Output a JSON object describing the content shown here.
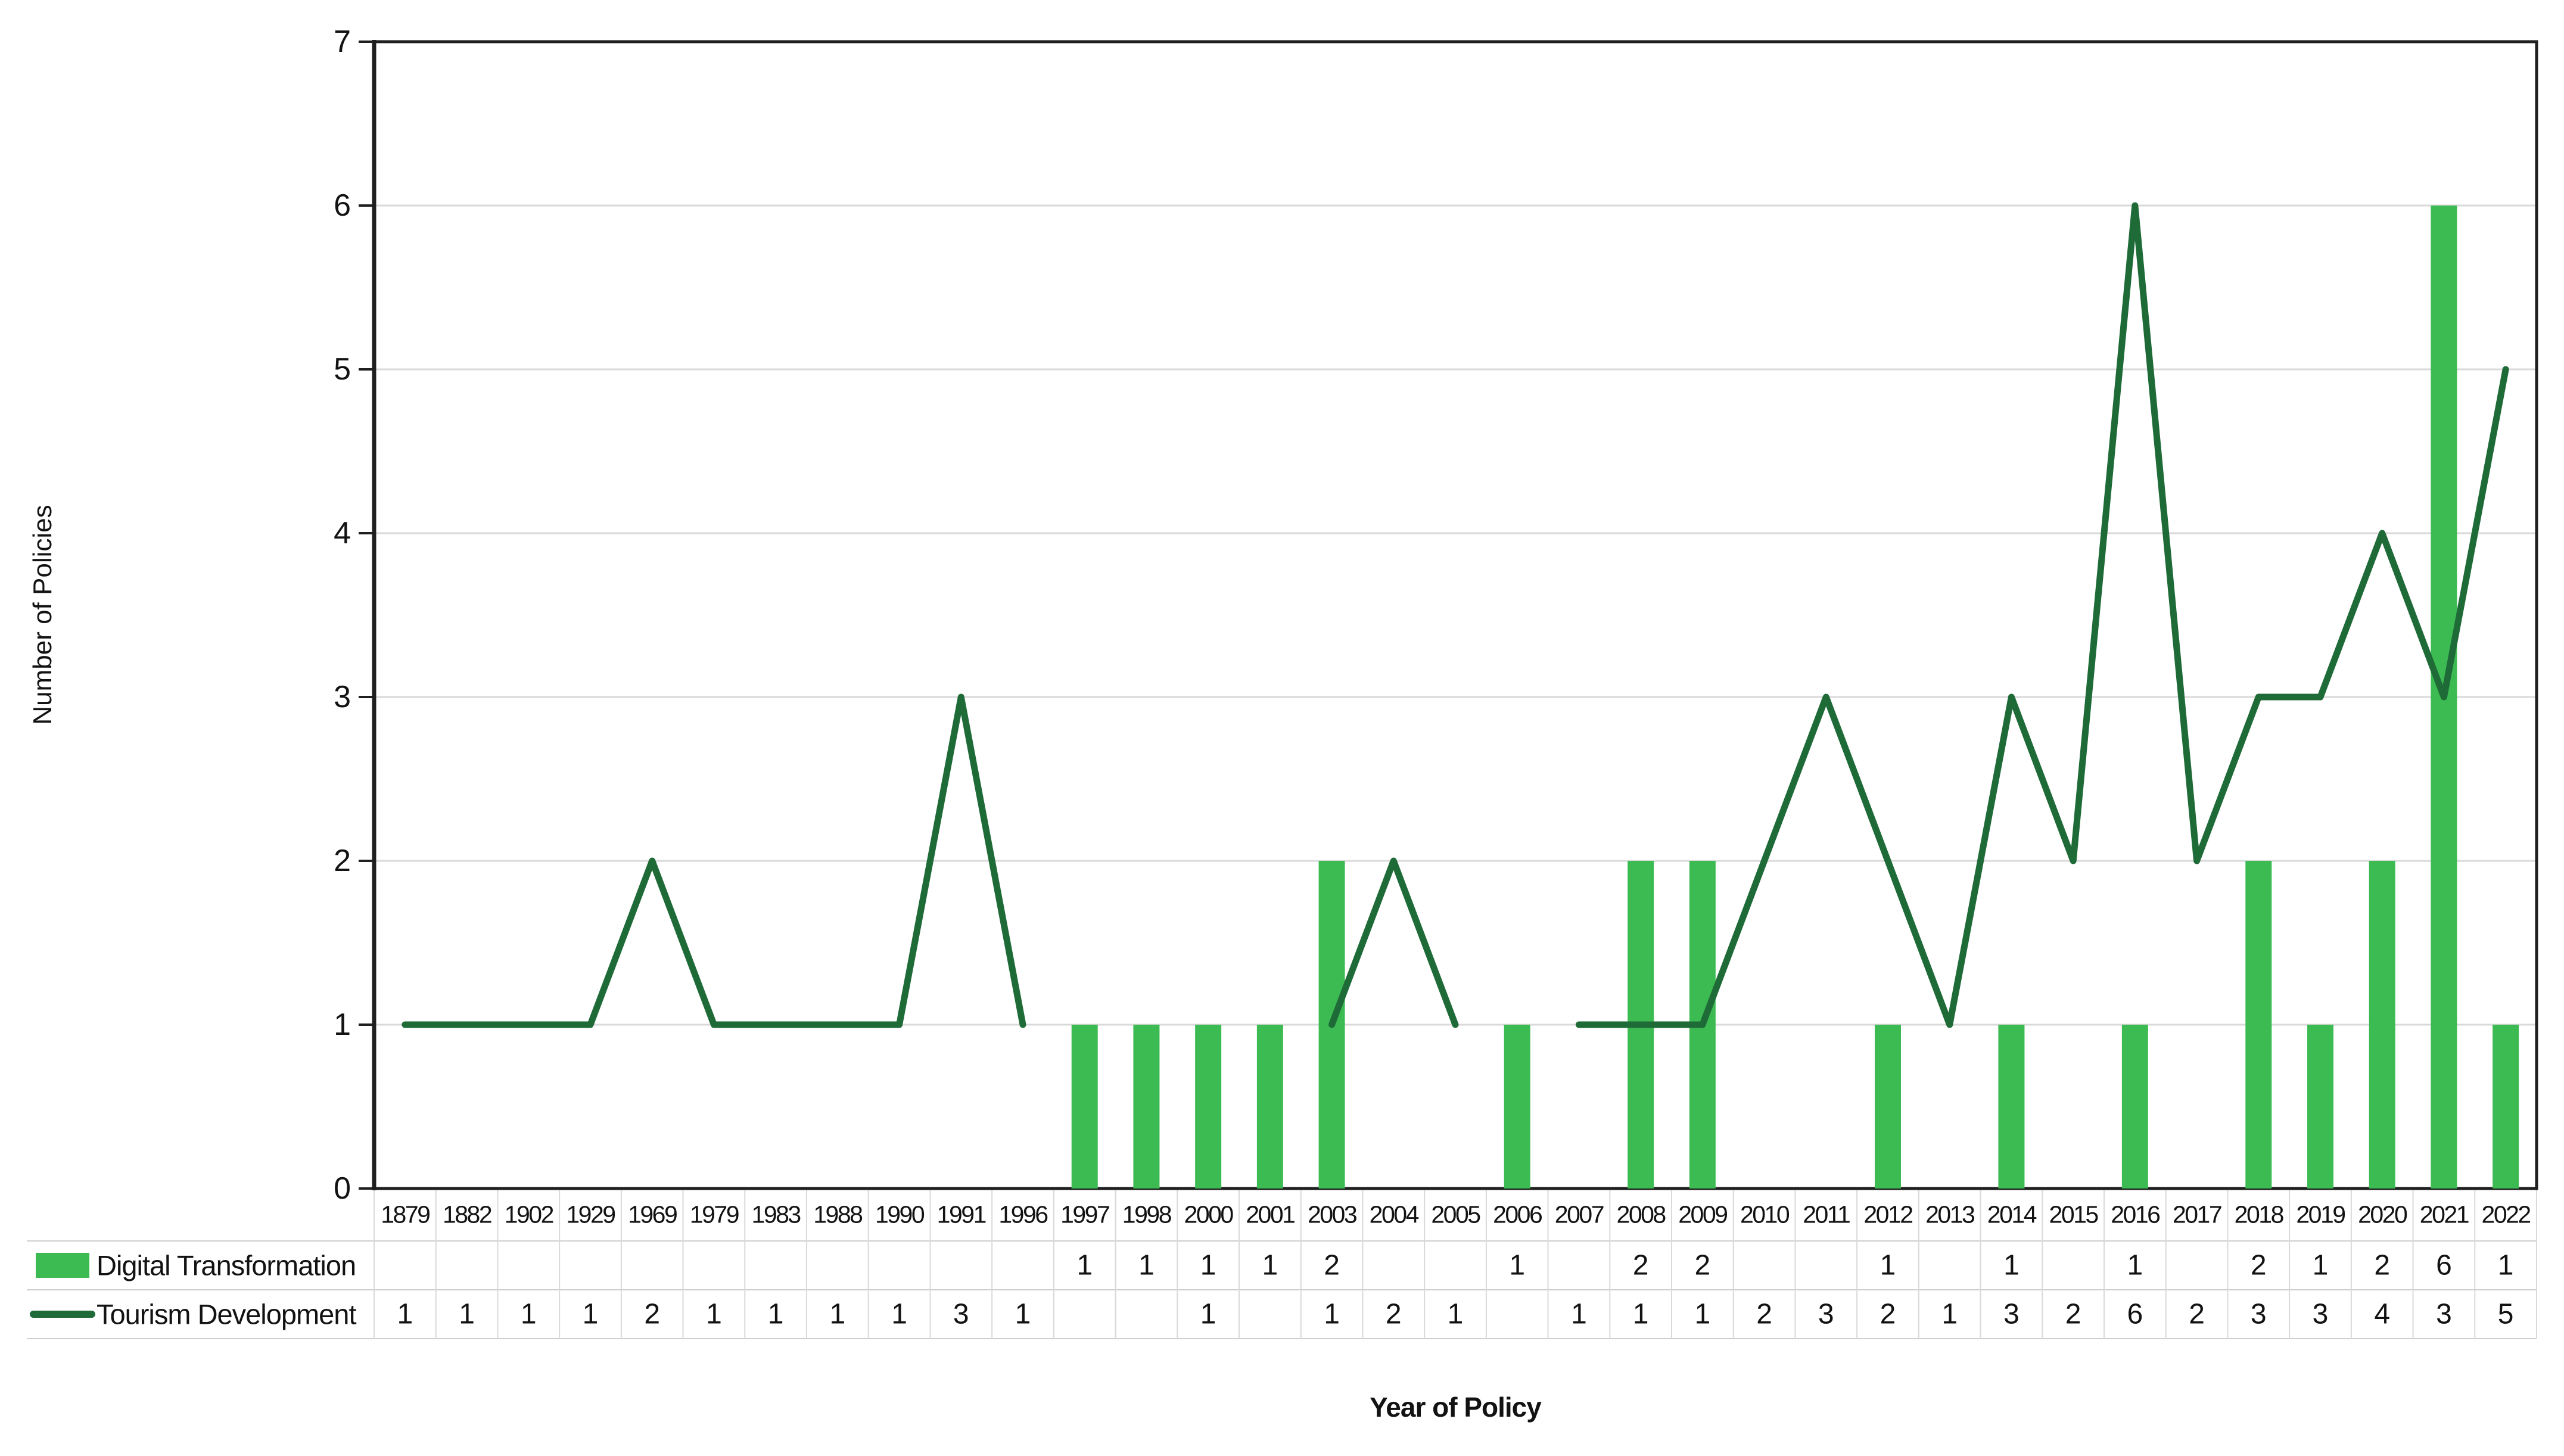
{
  "chart_data": {
    "type": "combo-bar-line",
    "title": "",
    "xlabel": "Year of Policy",
    "ylabel": "Number of Policies",
    "ylim": [
      0,
      7
    ],
    "yticks": [
      0,
      1,
      2,
      3,
      4,
      5,
      6,
      7
    ],
    "grid": true,
    "legend_position": "bottom-left-of-data-table",
    "categories": [
      "1879",
      "1882",
      "1902",
      "1929",
      "1969",
      "1979",
      "1983",
      "1988",
      "1990",
      "1991",
      "1996",
      "1997",
      "1998",
      "2000",
      "2001",
      "2003",
      "2004",
      "2005",
      "2006",
      "2007",
      "2008",
      "2009",
      "2010",
      "2011",
      "2012",
      "2013",
      "2014",
      "2015",
      "2016",
      "2017",
      "2018",
      "2019",
      "2020",
      "2021",
      "2022"
    ],
    "series": [
      {
        "name": "Digital Transformation",
        "type": "bar",
        "color": "#3CBB53",
        "values": [
          null,
          null,
          null,
          null,
          null,
          null,
          null,
          null,
          null,
          null,
          null,
          1,
          1,
          1,
          1,
          2,
          null,
          null,
          1,
          null,
          2,
          2,
          null,
          null,
          1,
          null,
          1,
          null,
          1,
          null,
          2,
          1,
          2,
          6,
          1
        ]
      },
      {
        "name": "Tourism Development",
        "type": "line",
        "color": "#1F6B38",
        "values": [
          1,
          1,
          1,
          1,
          2,
          1,
          1,
          1,
          1,
          3,
          1,
          null,
          null,
          1,
          null,
          1,
          2,
          1,
          null,
          1,
          1,
          1,
          2,
          3,
          2,
          1,
          3,
          2,
          6,
          2,
          3,
          3,
          4,
          3,
          5
        ]
      }
    ]
  },
  "colors": {
    "bar_fill": "#3CBB53",
    "line_stroke": "#1F6B38",
    "gridline": "#D9D9D9",
    "table_line": "#CFCFCF",
    "axis_border": "#1F1F1F",
    "text": "#121212",
    "background": "#FFFFFF"
  }
}
